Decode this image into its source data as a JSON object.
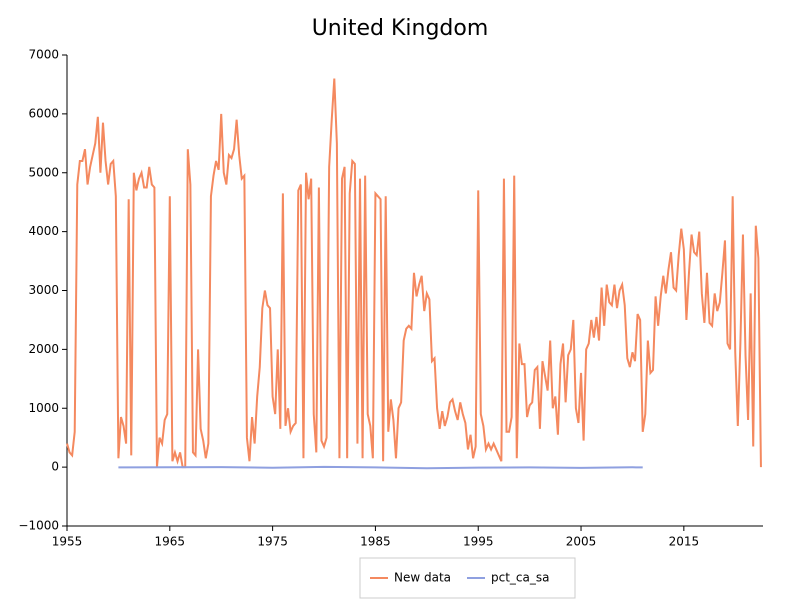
{
  "chart_data": {
    "type": "line",
    "title": "United Kingdom",
    "xlim": [
      1955,
      2022.7
    ],
    "xticks": [
      1955,
      1965,
      1975,
      1985,
      1995,
      2005,
      2015
    ],
    "ylim": [
      -1000,
      7000
    ],
    "yticks": [
      {
        "value": -1000,
        "label": "−1000"
      },
      0,
      1000,
      2000,
      3000,
      4000,
      5000,
      6000,
      7000
    ],
    "legend": "bottom",
    "series": [
      {
        "name": "New data",
        "color": "#f4895f",
        "x": [
          1955,
          1955.25,
          1955.5,
          1955.75,
          1956,
          1956.25,
          1956.5,
          1956.75,
          1957,
          1957.25,
          1957.5,
          1957.75,
          1958,
          1958.25,
          1958.5,
          1958.75,
          1959,
          1959.25,
          1959.5,
          1959.75,
          1960,
          1960.25,
          1960.5,
          1960.75,
          1961,
          1961.25,
          1961.5,
          1961.75,
          1962,
          1962.25,
          1962.5,
          1962.75,
          1963,
          1963.25,
          1963.5,
          1963.75,
          1964,
          1964.25,
          1964.5,
          1964.75,
          1965,
          1965.25,
          1965.5,
          1965.75,
          1966,
          1966.25,
          1966.5,
          1966.75,
          1967,
          1967.25,
          1967.5,
          1967.75,
          1968,
          1968.25,
          1968.5,
          1968.75,
          1969,
          1969.25,
          1969.5,
          1969.75,
          1970,
          1970.25,
          1970.5,
          1970.75,
          1971,
          1971.25,
          1971.5,
          1971.75,
          1972,
          1972.25,
          1972.5,
          1972.75,
          1973,
          1973.25,
          1973.5,
          1973.75,
          1974,
          1974.25,
          1974.5,
          1974.75,
          1975,
          1975.25,
          1975.5,
          1975.75,
          1976,
          1976.25,
          1976.5,
          1976.75,
          1977,
          1977.25,
          1977.5,
          1977.75,
          1978,
          1978.25,
          1978.5,
          1978.75,
          1979,
          1979.25,
          1979.5,
          1979.75,
          1980,
          1980.25,
          1980.5,
          1980.75,
          1981,
          1981.25,
          1981.5,
          1981.75,
          1982,
          1982.25,
          1982.5,
          1982.75,
          1983,
          1983.25,
          1983.5,
          1983.75,
          1984,
          1984.25,
          1984.5,
          1984.75,
          1985,
          1985.25,
          1985.5,
          1985.75,
          1986,
          1986.25,
          1986.5,
          1986.75,
          1987,
          1987.25,
          1987.5,
          1987.75,
          1988,
          1988.25,
          1988.5,
          1988.75,
          1989,
          1989.25,
          1989.5,
          1989.75,
          1990,
          1990.25,
          1990.5,
          1990.75,
          1991,
          1991.25,
          1991.5,
          1991.75,
          1992,
          1992.25,
          1992.5,
          1992.75,
          1993,
          1993.25,
          1993.5,
          1993.75,
          1994,
          1994.25,
          1994.5,
          1994.75,
          1995,
          1995.25,
          1995.5,
          1995.75,
          1996,
          1996.25,
          1996.5,
          1996.75,
          1997,
          1997.25,
          1997.5,
          1997.75,
          1998,
          1998.25,
          1998.5,
          1998.75,
          1999,
          1999.25,
          1999.5,
          1999.75,
          2000,
          2000.25,
          2000.5,
          2000.75,
          2001,
          2001.25,
          2001.5,
          2001.75,
          2002,
          2002.25,
          2002.5,
          2002.75,
          2003,
          2003.25,
          2003.5,
          2003.75,
          2004,
          2004.25,
          2004.5,
          2004.75,
          2005,
          2005.25,
          2005.5,
          2005.75,
          2006,
          2006.25,
          2006.5,
          2006.75,
          2007,
          2007.25,
          2007.5,
          2007.75,
          2008,
          2008.25,
          2008.5,
          2008.75,
          2009,
          2009.25,
          2009.5,
          2009.75,
          2010,
          2010.25,
          2010.5,
          2010.75,
          2011,
          2011.25,
          2011.5,
          2011.75,
          2012,
          2012.25,
          2012.5,
          2012.75,
          2013,
          2013.25,
          2013.5,
          2013.75,
          2014,
          2014.25,
          2014.5,
          2014.75,
          2015,
          2015.25,
          2015.5,
          2015.75,
          2016,
          2016.25,
          2016.5,
          2016.75,
          2017,
          2017.25,
          2017.5,
          2017.75,
          2018,
          2018.25,
          2018.5,
          2018.75,
          2019,
          2019.25,
          2019.5,
          2019.75,
          2020,
          2020.25,
          2020.5,
          2020.75,
          2021,
          2021.25,
          2021.5,
          2021.75,
          2022,
          2022.25,
          2022.5
        ],
        "values": [
          400,
          250,
          200,
          600,
          4800,
          5200,
          5200,
          5400,
          4800,
          5100,
          5300,
          5500,
          5950,
          5000,
          5850,
          5200,
          4800,
          5150,
          5200,
          4600,
          150,
          850,
          700,
          400,
          4550,
          200,
          5000,
          4700,
          4900,
          5000,
          4750,
          4750,
          5100,
          4800,
          4750,
          0,
          500,
          400,
          800,
          900,
          4600,
          100,
          250,
          100,
          250,
          0,
          0,
          5400,
          4800,
          250,
          200,
          2000,
          650,
          450,
          150,
          400,
          4600,
          4950,
          5200,
          5050,
          6000,
          5000,
          4800,
          5300,
          5250,
          5400,
          5900,
          5300,
          4900,
          4950,
          500,
          100,
          850,
          400,
          1200,
          1700,
          2700,
          3000,
          2750,
          2700,
          1200,
          900,
          2000,
          650,
          4650,
          700,
          1000,
          600,
          700,
          750,
          4700,
          4800,
          150,
          5000,
          4550,
          4900,
          900,
          250,
          4750,
          450,
          350,
          500,
          5100,
          5900,
          6600,
          5500,
          150,
          4900,
          5100,
          150,
          4650,
          5200,
          5150,
          400,
          4900,
          150,
          4950,
          900,
          700,
          150,
          4650,
          4600,
          4550,
          100,
          4600,
          600,
          1150,
          800,
          150,
          1000,
          1100,
          2150,
          2350,
          2400,
          2350,
          3300,
          2900,
          3100,
          3250,
          2650,
          2950,
          2850,
          1800,
          1850,
          1000,
          650,
          950,
          700,
          850,
          1100,
          1150,
          950,
          800,
          1100,
          900,
          750,
          300,
          550,
          150,
          350,
          4700,
          900,
          700,
          300,
          400,
          300,
          400,
          300,
          200,
          100,
          4900,
          600,
          600,
          850,
          4950,
          150,
          2100,
          1750,
          1750,
          850,
          1050,
          1100,
          1650,
          1700,
          650,
          1800,
          1550,
          1300,
          2150,
          1000,
          1200,
          550,
          1750,
          2100,
          1100,
          1900,
          2000,
          2500,
          1000,
          750,
          1600,
          450,
          2000,
          2100,
          2500,
          2200,
          2550,
          2150,
          3050,
          2400,
          3100,
          2800,
          2750,
          3100,
          2700,
          3000,
          3100,
          2750,
          1850,
          1700,
          1950,
          1800,
          2600,
          2500,
          600,
          900,
          2150,
          1600,
          1650,
          2900,
          2400,
          2900,
          3250,
          2950,
          3350,
          3650,
          3050,
          3000,
          3600,
          4050,
          3700,
          2500,
          3300,
          3950,
          3650,
          3600,
          4000,
          2950,
          2450,
          3300,
          2450,
          2400,
          2950,
          2650,
          2800,
          3300,
          3850,
          2100,
          2000,
          4600,
          1950,
          700,
          2100,
          3950,
          1900,
          800,
          2950,
          350,
          4100,
          3550,
          0
        ]
      },
      {
        "name": "pct_ca_sa",
        "color": "#8fa0e0",
        "x": [
          1960,
          1965,
          1970,
          1975,
          1980,
          1985,
          1990,
          1995,
          2000,
          2005,
          2010,
          2011
        ],
        "values": [
          -5,
          -3,
          0,
          -10,
          5,
          -5,
          -20,
          -8,
          -5,
          -12,
          -3,
          -4
        ]
      }
    ]
  }
}
